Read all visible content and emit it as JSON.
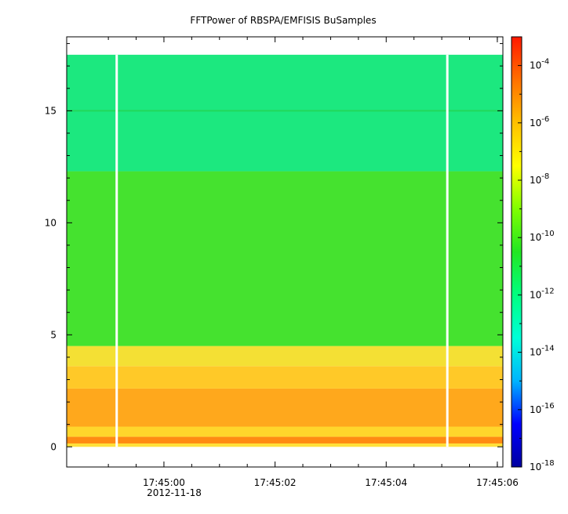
{
  "chart_data": {
    "type": "heatmap",
    "title": "FFTPower of RBSPA/EMFISIS  BuSamples",
    "xlabel": "",
    "ylabel": "",
    "date_label": "2012-11-18",
    "x_tick_labels": [
      "17:45:00",
      "17:45:02",
      "17:45:04",
      "17:45:06"
    ],
    "x_tick_seconds": [
      0,
      2,
      4,
      6
    ],
    "x_range_seconds": [
      -1.75,
      6.1
    ],
    "x_minor_tick_seconds": [
      -1,
      -0.5,
      0.5,
      1,
      1.5,
      2.5,
      3,
      3.5,
      4.5,
      5,
      5.5,
      6
    ],
    "y_tick_values": [
      0,
      5,
      10,
      15
    ],
    "y_range": [
      -0.9,
      18.3
    ],
    "data_extent": {
      "x": [
        -1.75,
        6.1
      ],
      "y": [
        0,
        17.5
      ]
    },
    "gaps_seconds": [
      -0.85,
      5.1
    ],
    "bands": [
      {
        "y": [
          0.0,
          0.15
        ],
        "color": "#ffe03a"
      },
      {
        "y": [
          0.15,
          0.45
        ],
        "color": "#ff8b12"
      },
      {
        "y": [
          0.45,
          0.9
        ],
        "color": "#ffd62b"
      },
      {
        "y": [
          0.9,
          2.6
        ],
        "color": "#ffa81c"
      },
      {
        "y": [
          2.6,
          3.6
        ],
        "color": "#ffc928"
      },
      {
        "y": [
          3.6,
          4.5
        ],
        "color": "#f4e034"
      },
      {
        "y": [
          4.5,
          12.3
        ],
        "color": "#45e22f"
      },
      {
        "y": [
          12.3,
          17.5
        ],
        "color": "#1ce87f"
      }
    ],
    "line_15": {
      "y": 15.0,
      "color": "#22d85a"
    },
    "colorbar": {
      "scale": "log",
      "range": [
        1e-18,
        0.001
      ],
      "tick_exponents": [
        -18,
        -16,
        -14,
        -12,
        -10,
        -8,
        -6,
        -4
      ],
      "tick_base": "10",
      "colors": [
        "#0000a0",
        "#0000ff",
        "#00b4ff",
        "#00ffd8",
        "#00ff80",
        "#22e622",
        "#80ff00",
        "#ffff00",
        "#ffc000",
        "#ff7000",
        "#ff1800"
      ]
    }
  }
}
